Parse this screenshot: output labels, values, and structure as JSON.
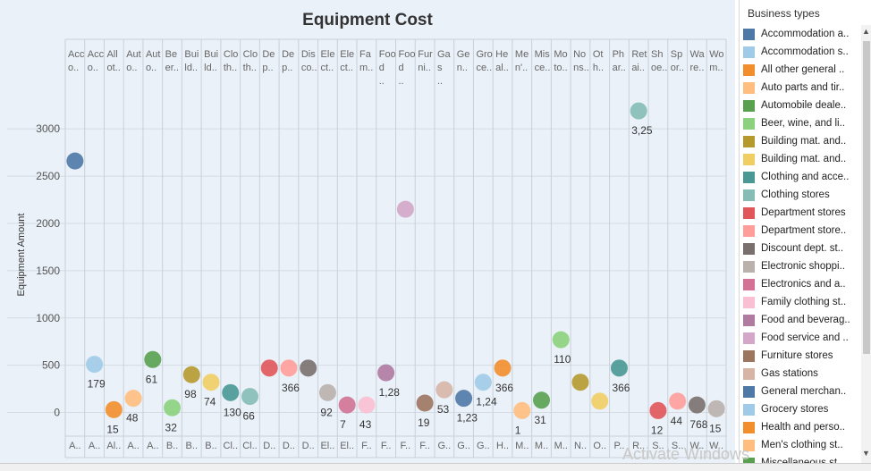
{
  "chart_data": {
    "type": "scatter",
    "title": "Equipment Cost",
    "ylabel": "Equipment Amount",
    "xlabel": "",
    "ylim": [
      -250,
      3550
    ],
    "yticks": [
      0,
      500,
      1000,
      1500,
      2000,
      2500,
      3000
    ],
    "ytick_labels": [
      "0",
      "500",
      "1000",
      "1500",
      "2000",
      "2500",
      "3000"
    ],
    "grid": true,
    "legend_position": "right",
    "categories": [
      {
        "top": "Acc o..",
        "bottom": "A..",
        "value": 2660,
        "label": "",
        "color": "#4e79a7"
      },
      {
        "top": "Acc o..",
        "bottom": "A..",
        "value": 510,
        "label": "179",
        "color": "#a0cbe8"
      },
      {
        "top": "All ot..",
        "bottom": "Al..",
        "value": 30,
        "label": "15",
        "color": "#f28e2b"
      },
      {
        "top": "Aut o..",
        "bottom": "A..",
        "value": 150,
        "label": "48",
        "color": "#ffbe7d"
      },
      {
        "top": "Aut o..",
        "bottom": "A..",
        "value": 560,
        "label": "61",
        "color": "#59a14f"
      },
      {
        "top": "Be er..",
        "bottom": "B..",
        "value": 50,
        "label": "32",
        "color": "#8cd17d"
      },
      {
        "top": "Bui ld..",
        "bottom": "B..",
        "value": 400,
        "label": "98",
        "color": "#b6992d"
      },
      {
        "top": "Bui ld..",
        "bottom": "B..",
        "value": 320,
        "label": "74",
        "color": "#f1ce63"
      },
      {
        "top": "Clo th..",
        "bottom": "Cl..",
        "value": 210,
        "label": "130",
        "color": "#499894"
      },
      {
        "top": "Clo th..",
        "bottom": "Cl..",
        "value": 170,
        "label": "66",
        "color": "#86bcb6"
      },
      {
        "top": "De p..",
        "bottom": "D..",
        "value": 470,
        "label": "",
        "color": "#e15759"
      },
      {
        "top": "De p..",
        "bottom": "D..",
        "value": 470,
        "label": "366",
        "color": "#ff9d9a"
      },
      {
        "top": "Dis co..",
        "bottom": "D..",
        "value": 470,
        "label": "",
        "color": "#79706e"
      },
      {
        "top": "Ele ct..",
        "bottom": "El..",
        "value": 210,
        "label": "92",
        "color": "#bab0ac"
      },
      {
        "top": "Ele ct..",
        "bottom": "El..",
        "value": 80,
        "label": "7",
        "color": "#d37295"
      },
      {
        "top": "Fa m..",
        "bottom": "F..",
        "value": 80,
        "label": "43",
        "color": "#fabfd2"
      },
      {
        "top": "Foo d ..",
        "bottom": "F..",
        "value": 420,
        "label": "1,28",
        "color": "#b07aa1"
      },
      {
        "top": "Foo d ..",
        "bottom": "F..",
        "value": 2150,
        "label": "",
        "color": "#d4a6c8"
      },
      {
        "top": "Fur ni..",
        "bottom": "F..",
        "value": 100,
        "label": "19",
        "color": "#9d7660"
      },
      {
        "top": "Ga s ..",
        "bottom": "G..",
        "value": 240,
        "label": "53",
        "color": "#d7b5a6"
      },
      {
        "top": "Ge n..",
        "bottom": "G..",
        "value": 150,
        "label": "1,23",
        "color": "#4e79a7"
      },
      {
        "top": "Gro ce..",
        "bottom": "G..",
        "value": 320,
        "label": "1,24",
        "color": "#a0cbe8"
      },
      {
        "top": "He al..",
        "bottom": "H..",
        "value": 470,
        "label": "366",
        "color": "#f28e2b"
      },
      {
        "top": "Me n'..",
        "bottom": "M..",
        "value": 20,
        "label": "1",
        "color": "#ffbe7d"
      },
      {
        "top": "Mis ce..",
        "bottom": "M..",
        "value": 130,
        "label": "31",
        "color": "#59a14f"
      },
      {
        "top": "Mo to..",
        "bottom": "M..",
        "value": 770,
        "label": "110",
        "color": "#8cd17d"
      },
      {
        "top": "No ns..",
        "bottom": "N..",
        "value": 320,
        "label": "",
        "color": "#b6992d"
      },
      {
        "top": "Ot h..",
        "bottom": "O..",
        "value": 120,
        "label": "",
        "color": "#f1ce63"
      },
      {
        "top": "Ph ar..",
        "bottom": "P..",
        "value": 470,
        "label": "366",
        "color": "#499894"
      },
      {
        "top": "Ret ai..",
        "bottom": "R..",
        "value": 3190,
        "label": "3,25",
        "color": "#86bcb6"
      },
      {
        "top": "Sh oe..",
        "bottom": "S..",
        "value": 20,
        "label": "12",
        "color": "#e15759"
      },
      {
        "top": "Sp or..",
        "bottom": "S..",
        "value": 120,
        "label": "44",
        "color": "#ff9d9a"
      },
      {
        "top": "Wa re..",
        "bottom": "W..",
        "value": 80,
        "label": "768",
        "color": "#79706e"
      },
      {
        "top": "Wo m..",
        "bottom": "W..",
        "value": 40,
        "label": "15",
        "color": "#bab0ac"
      }
    ]
  },
  "legend": {
    "title": "Business types",
    "items": [
      {
        "label": "Accommodation a..",
        "color": "#4e79a7"
      },
      {
        "label": "Accommodation s..",
        "color": "#a0cbe8"
      },
      {
        "label": "All other general ..",
        "color": "#f28e2b"
      },
      {
        "label": "Auto parts and tir..",
        "color": "#ffbe7d"
      },
      {
        "label": "Automobile deale..",
        "color": "#59a14f"
      },
      {
        "label": "Beer, wine, and li..",
        "color": "#8cd17d"
      },
      {
        "label": "Building mat. and..",
        "color": "#b6992d"
      },
      {
        "label": "Building mat. and..",
        "color": "#f1ce63"
      },
      {
        "label": "Clothing and acce..",
        "color": "#499894"
      },
      {
        "label": "Clothing stores",
        "color": "#86bcb6"
      },
      {
        "label": "Department stores",
        "color": "#e15759"
      },
      {
        "label": "Department store..",
        "color": "#ff9d9a"
      },
      {
        "label": "Discount dept. st..",
        "color": "#79706e"
      },
      {
        "label": "Electronic shoppi..",
        "color": "#bab0ac"
      },
      {
        "label": "Electronics and a..",
        "color": "#d37295"
      },
      {
        "label": "Family clothing st..",
        "color": "#fabfd2"
      },
      {
        "label": "Food and beverag..",
        "color": "#b07aa1"
      },
      {
        "label": "Food service and ..",
        "color": "#d4a6c8"
      },
      {
        "label": "Furniture stores",
        "color": "#9d7660"
      },
      {
        "label": "Gas stations",
        "color": "#d7b5a6"
      },
      {
        "label": "General merchan..",
        "color": "#4e79a7"
      },
      {
        "label": "Grocery stores",
        "color": "#a0cbe8"
      },
      {
        "label": "Health and perso..",
        "color": "#f28e2b"
      },
      {
        "label": "Men's clothing st..",
        "color": "#ffbe7d"
      },
      {
        "label": "Miscellaneous st..",
        "color": "#59a14f"
      }
    ]
  },
  "watermark": "Activate Windows"
}
